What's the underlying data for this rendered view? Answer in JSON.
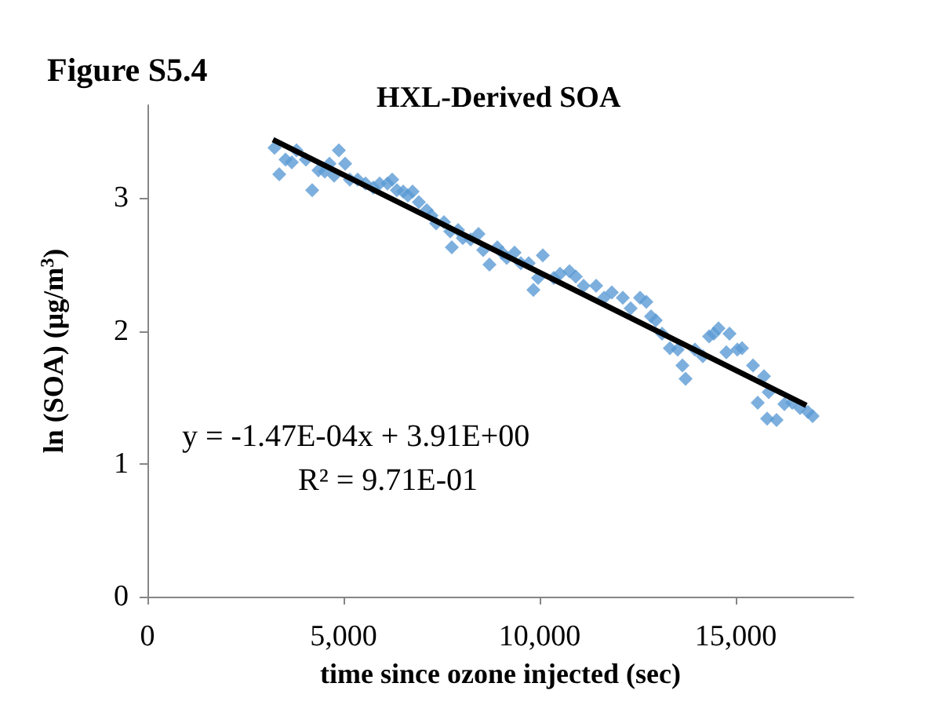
{
  "chart_data": {
    "type": "scatter",
    "title": "HXL-Derived SOA",
    "xlabel": "time since ozone injected (sec)",
    "ylabel": "ln (SOA) (μg/m$^{3}$)",
    "annotations": [
      "Figure S5.4",
      "y = -1.47E-04x + 3.91E+00",
      "R² = 9.71E-01"
    ],
    "grid": false,
    "xlim": [
      0,
      18000
    ],
    "xticks": [
      {
        "value": 0,
        "label": "0"
      },
      {
        "value": 5000,
        "label": "5,000"
      },
      {
        "value": 10000,
        "label": "10,000"
      },
      {
        "value": 15000,
        "label": "15,000"
      }
    ],
    "ylim": [
      0,
      3.7
    ],
    "yticks": [
      0,
      1,
      2,
      3
    ],
    "series": [
      {
        "marker": "diamond",
        "color": "#5b9bd5",
        "x": [
          3240,
          3360,
          3520,
          3680,
          3800,
          4040,
          4200,
          4360,
          4520,
          4640,
          4760,
          4880,
          5040,
          5160,
          5360,
          5560,
          5760,
          5920,
          6120,
          6240,
          6360,
          6520,
          6640,
          6760,
          6920,
          7120,
          7240,
          7360,
          7560,
          7720,
          7760,
          7920,
          8040,
          8240,
          8440,
          8560,
          8720,
          8920,
          9040,
          9160,
          9360,
          9520,
          9720,
          9840,
          9960,
          10080,
          10360,
          10520,
          10760,
          10920,
          11120,
          11440,
          11640,
          11840,
          12120,
          12320,
          12560,
          12720,
          12840,
          12960,
          13120,
          13320,
          13520,
          13640,
          13720,
          13960,
          14160,
          14320,
          14440,
          14560,
          14760,
          14840,
          15040,
          15160,
          15440,
          15560,
          15720,
          15800,
          15840,
          16040,
          16240,
          16440,
          16640,
          16840,
          16960
        ],
        "values": [
          3.38,
          3.18,
          3.29,
          3.27,
          3.36,
          3.29,
          3.06,
          3.21,
          3.2,
          3.26,
          3.17,
          3.36,
          3.26,
          3.14,
          3.14,
          3.11,
          3.08,
          3.11,
          3.11,
          3.14,
          3.06,
          3.05,
          3.02,
          3.05,
          2.97,
          2.91,
          2.87,
          2.81,
          2.82,
          2.75,
          2.63,
          2.76,
          2.7,
          2.69,
          2.73,
          2.61,
          2.5,
          2.63,
          2.59,
          2.55,
          2.59,
          2.51,
          2.51,
          2.31,
          2.4,
          2.57,
          2.4,
          2.43,
          2.45,
          2.41,
          2.34,
          2.34,
          2.25,
          2.29,
          2.25,
          2.17,
          2.25,
          2.22,
          2.11,
          2.08,
          1.98,
          1.87,
          1.86,
          1.74,
          1.64,
          1.86,
          1.81,
          1.96,
          1.98,
          2.02,
          1.84,
          1.98,
          1.86,
          1.87,
          1.74,
          1.46,
          1.66,
          1.34,
          1.54,
          1.33,
          1.45,
          1.46,
          1.42,
          1.39,
          1.36
        ]
      },
      {
        "type": "line",
        "marker": "none",
        "color": "#000000",
        "x": [
          3200,
          16800
        ],
        "values": [
          3.44,
          1.44
        ]
      }
    ]
  }
}
